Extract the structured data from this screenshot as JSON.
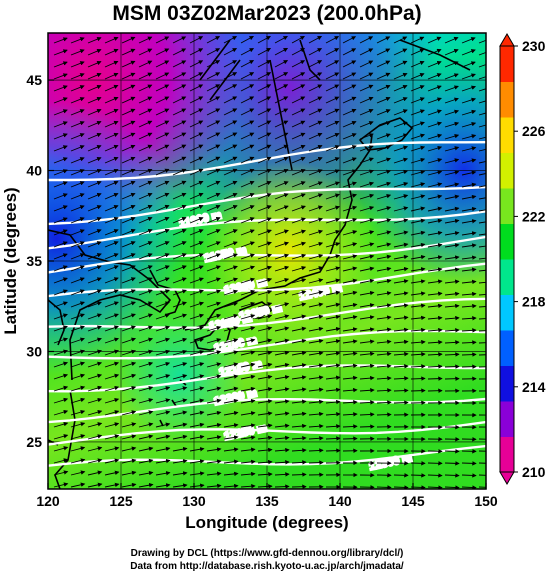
{
  "title": "MSM 03Z02Mar2023 (200.0hPa)",
  "x_axis": {
    "label": "Longitude (degrees)",
    "range": [
      120,
      150
    ],
    "ticks": [
      "120",
      "125",
      "130",
      "135",
      "140",
      "145",
      "150"
    ]
  },
  "y_axis": {
    "label": "Latitude  (degrees)",
    "range": [
      22.4,
      47.6
    ],
    "ticks": [
      "25",
      "30",
      "35",
      "40",
      "45"
    ]
  },
  "colorbar": {
    "range": [
      210,
      230
    ],
    "ticks": [
      "210",
      "214",
      "218",
      "222",
      "226",
      "230"
    ],
    "colors": [
      "#e60096",
      "#8a00d8",
      "#1010e0",
      "#0060ff",
      "#00c8ff",
      "#00e68c",
      "#00dc1e",
      "#78e61e",
      "#d2f000",
      "#ffdc00",
      "#ff8c00",
      "#ff2800"
    ]
  },
  "contours": {
    "labels": [
      "11900 m",
      "11950 m",
      "12000 m",
      "12050 m",
      "12100 m",
      "12150 m",
      "12200 m",
      "12250 m",
      "12300 m",
      "12350 m",
      "12400 m"
    ]
  },
  "credits": {
    "line1": "Drawing by DCL (https://www.gfd-dennou.org/library/dcl/)",
    "line2": "Data from http://database.rish.kyoto-u.ac.jp/arch/jmadata/"
  }
}
